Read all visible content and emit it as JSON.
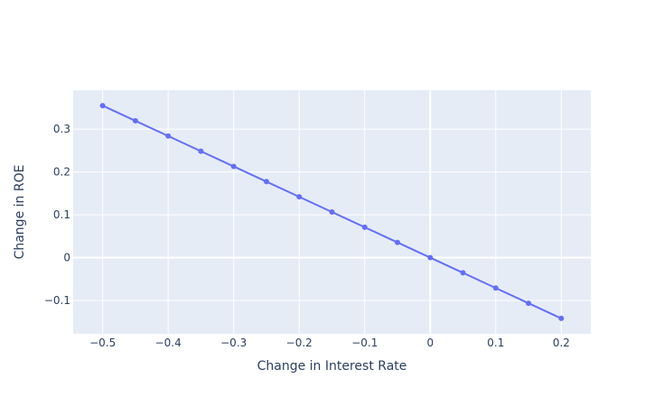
{
  "chart_data": {
    "type": "line",
    "xlabel": "Change in Interest Rate",
    "ylabel": "Change in ROE",
    "xlim": [
      -0.545,
      0.245
    ],
    "ylim": [
      -0.178,
      0.391
    ],
    "x_ticks": [
      -0.5,
      -0.4,
      -0.3,
      -0.2,
      -0.1,
      0,
      0.1,
      0.2
    ],
    "x_tick_labels": [
      "−0.5",
      "−0.4",
      "−0.3",
      "−0.2",
      "−0.1",
      "0",
      "0.1",
      "0.2"
    ],
    "y_ticks": [
      -0.1,
      0,
      0.1,
      0.2,
      0.3
    ],
    "y_tick_labels": [
      "−0.1",
      "0",
      "0.1",
      "0.2",
      "0.3"
    ],
    "grid": true,
    "colors": {
      "plot_bg": "#E5ECF6",
      "grid": "#ffffff",
      "line": "#636EFA",
      "text": "#2a3f5f"
    },
    "series": [
      {
        "x": [
          -0.5,
          -0.45,
          -0.4,
          -0.35,
          -0.3,
          -0.25,
          -0.2,
          -0.15,
          -0.1,
          -0.05,
          0,
          0.05,
          0.1,
          0.15,
          0.2
        ],
        "values": [
          0.355,
          0.3195,
          0.284,
          0.2485,
          0.213,
          0.1775,
          0.142,
          0.1065,
          0.071,
          0.0355,
          0,
          -0.0355,
          -0.071,
          -0.1065,
          -0.142
        ]
      }
    ]
  }
}
